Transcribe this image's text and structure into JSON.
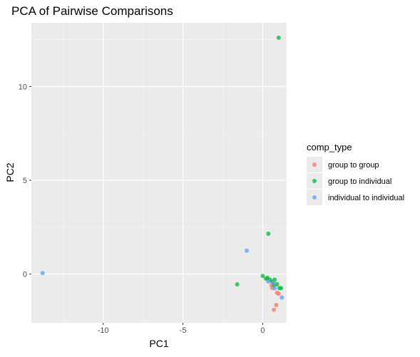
{
  "chart_data": {
    "type": "scatter",
    "title": "PCA of Pairwise Comparisons",
    "xlabel": "PC1",
    "ylabel": "PC2",
    "xlim": [
      -14.5,
      1.5
    ],
    "ylim": [
      -2.6,
      13.4
    ],
    "x_ticks": [
      -10,
      -5,
      0
    ],
    "x_tick_labels": [
      "-10",
      "-5",
      "0"
    ],
    "y_ticks": [
      0,
      5,
      10
    ],
    "y_tick_labels": [
      "0",
      "5",
      "10"
    ],
    "grid": true,
    "legend": {
      "title": "comp_type",
      "placement": "right"
    },
    "series": [
      {
        "name": "group to group",
        "color": "#F8766D",
        "points": [
          {
            "x": 0.6,
            "y": -0.75
          },
          {
            "x": 0.9,
            "y": -1.0
          },
          {
            "x": 1.0,
            "y": -1.05
          },
          {
            "x": 0.85,
            "y": -1.65
          },
          {
            "x": 0.7,
            "y": -1.9
          },
          {
            "x": 0.55,
            "y": -0.6
          }
        ]
      },
      {
        "name": "group to individual",
        "color": "#00BA38",
        "points": [
          {
            "x": 1.0,
            "y": 12.6
          },
          {
            "x": 0.35,
            "y": 2.15
          },
          {
            "x": -1.6,
            "y": -0.55
          },
          {
            "x": 0.0,
            "y": -0.1
          },
          {
            "x": 0.3,
            "y": -0.2
          },
          {
            "x": 0.45,
            "y": -0.3
          },
          {
            "x": 0.6,
            "y": -0.4
          },
          {
            "x": 0.75,
            "y": -0.3
          },
          {
            "x": 0.9,
            "y": -0.55
          },
          {
            "x": 1.05,
            "y": -0.75
          },
          {
            "x": 1.15,
            "y": -0.75
          },
          {
            "x": 0.7,
            "y": -0.6
          },
          {
            "x": 0.2,
            "y": -0.25
          }
        ]
      },
      {
        "name": "individual to individual",
        "color": "#619CFF",
        "points": [
          {
            "x": -13.8,
            "y": 0.05
          },
          {
            "x": -1.0,
            "y": 1.25
          },
          {
            "x": 0.35,
            "y": -0.4
          },
          {
            "x": 0.7,
            "y": -0.45
          },
          {
            "x": 1.2,
            "y": -1.25
          },
          {
            "x": 0.75,
            "y": -0.75
          }
        ]
      }
    ]
  }
}
